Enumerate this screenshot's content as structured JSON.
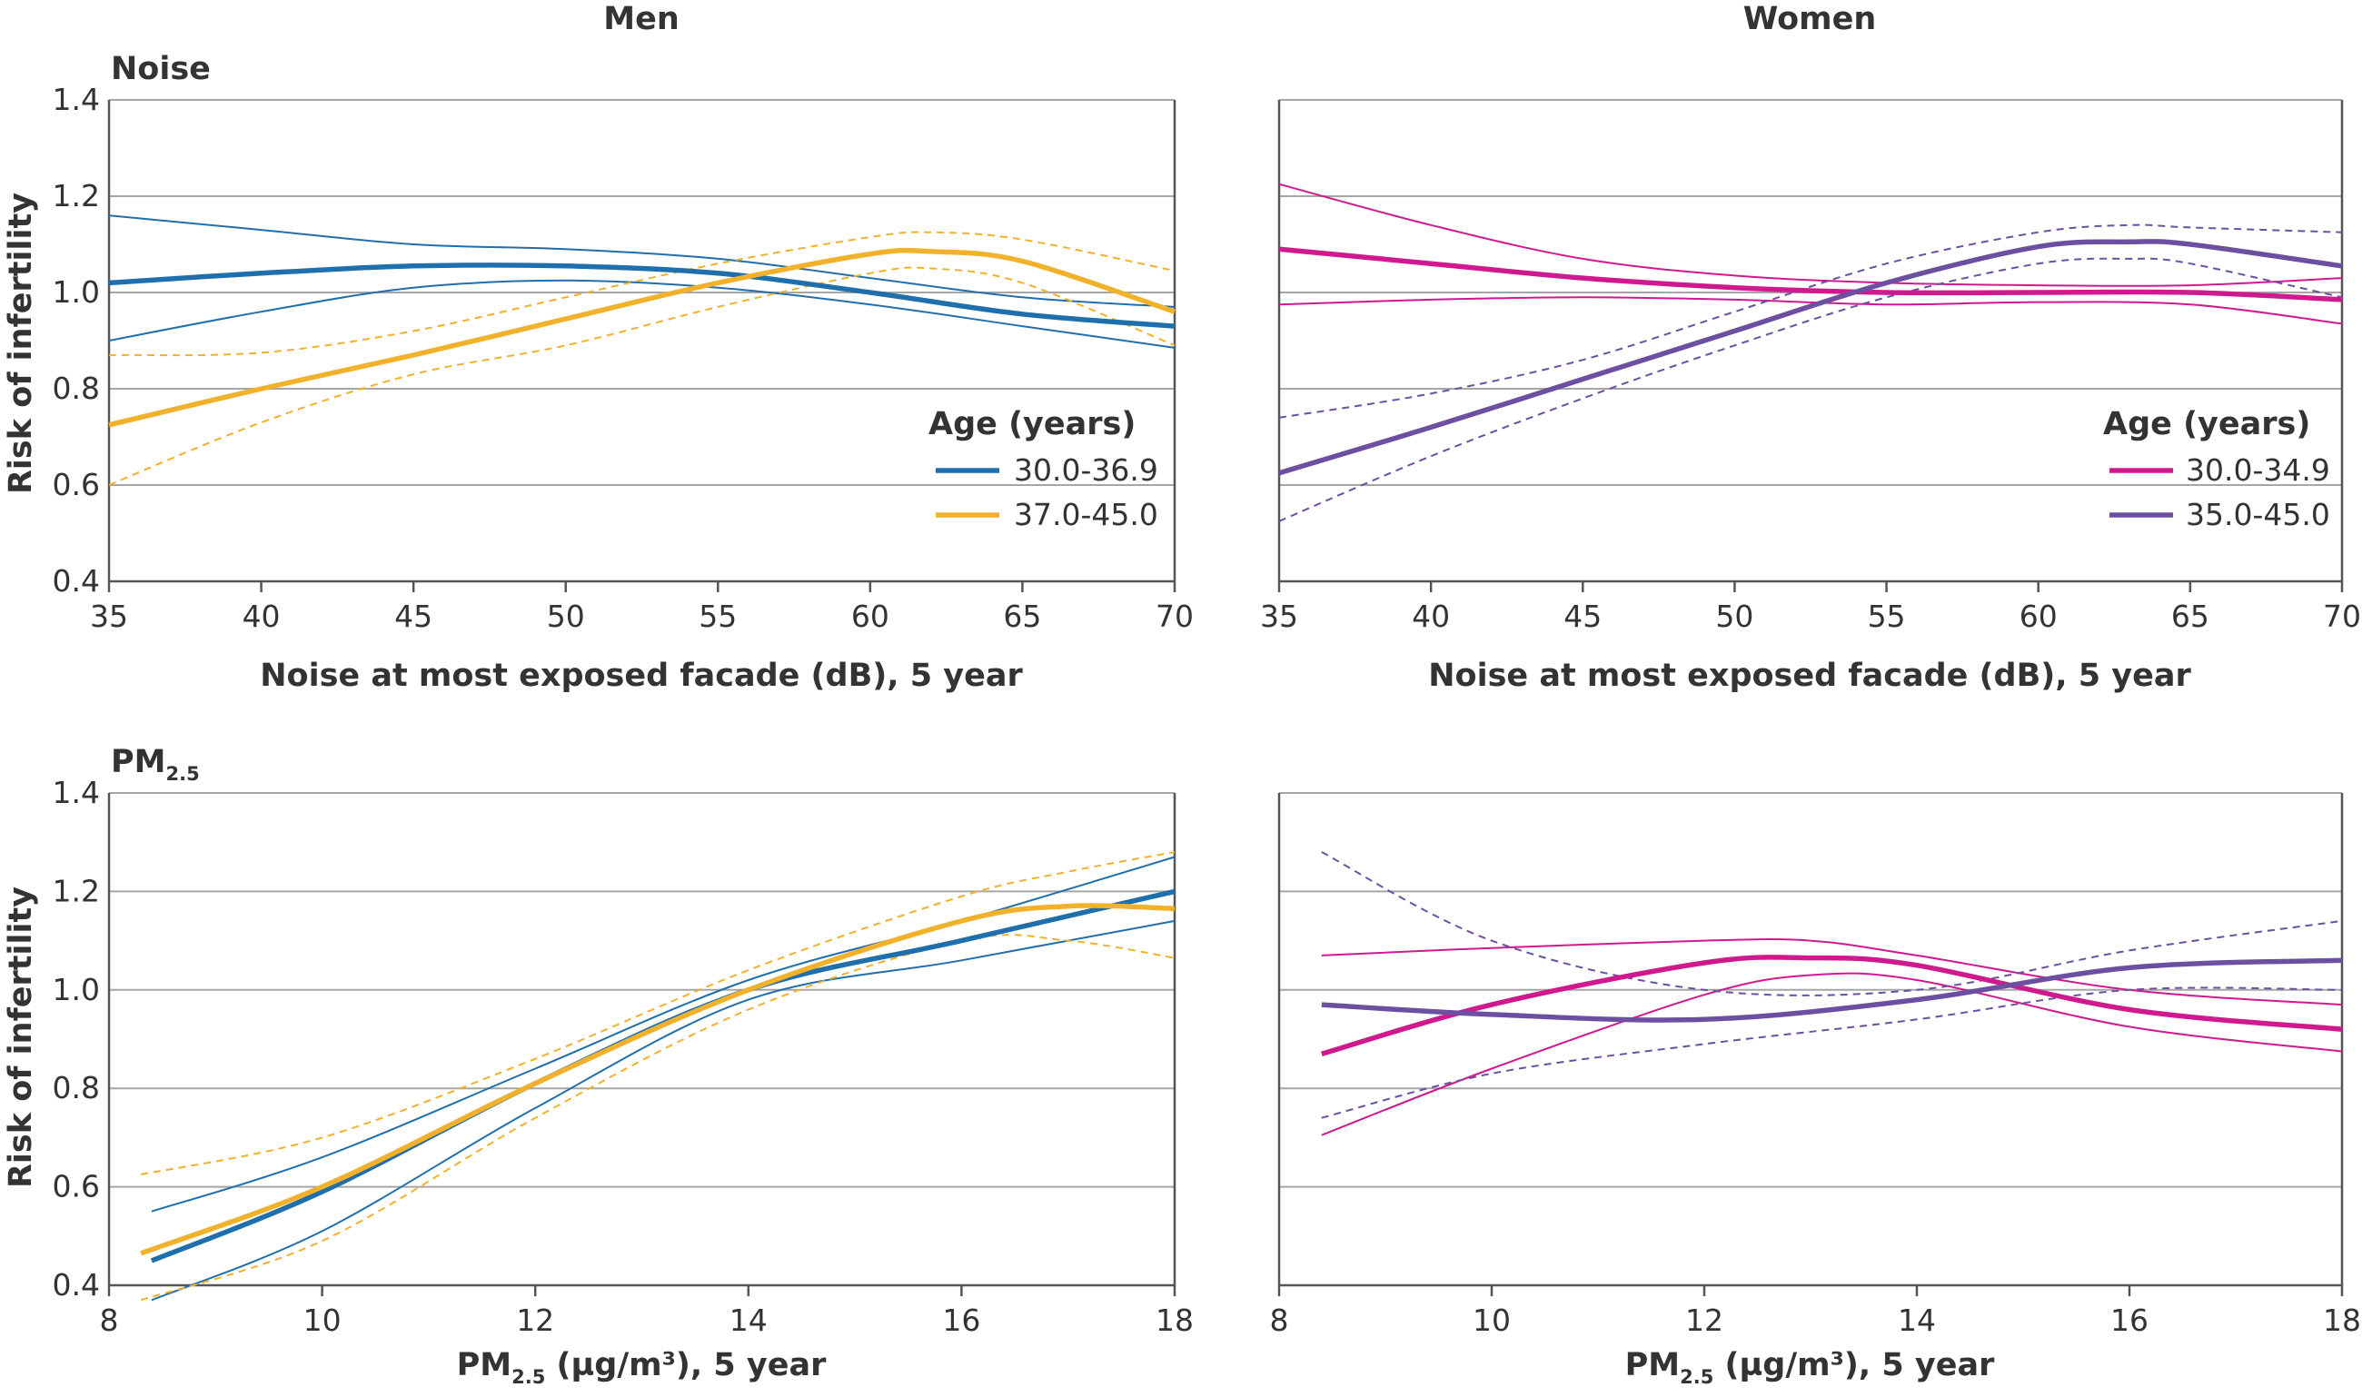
{
  "figure": {
    "column_titles": [
      "Men",
      "Women"
    ],
    "row_titles": [
      {
        "main": "Noise",
        "sub": ""
      },
      {
        "main": "PM",
        "sub": "2.5"
      }
    ],
    "y_axis_title": "Risk of infertility",
    "x_axis_titles": [
      {
        "pre": "Noise at most exposed facade (dB), 5 year",
        "sub": "",
        "post": ""
      },
      {
        "pre": "PM",
        "sub": "2.5",
        "post": " (µg/m³), 5 year"
      }
    ],
    "legends": [
      {
        "title": "Age (years)",
        "items": [
          {
            "label": "30.0-36.9",
            "color": "#1f6fad"
          },
          {
            "label": "37.0-45.0",
            "color": "#f2b12b"
          }
        ]
      },
      {
        "title": "Age (years)",
        "items": [
          {
            "label": "30.0-34.9",
            "color": "#d0198f"
          },
          {
            "label": "35.0-45.0",
            "color": "#6c4fa0"
          }
        ]
      }
    ]
  },
  "chart_data": [
    {
      "type": "line",
      "title": "Men",
      "row_label": "Noise",
      "xlabel": "Noise at most exposed facade (dB), 5 year",
      "ylabel": "Risk of infertility",
      "xlim": [
        35,
        70
      ],
      "ylim": [
        0.4,
        1.4
      ],
      "xticks": [
        35,
        40,
        45,
        50,
        55,
        60,
        65,
        70
      ],
      "yticks": [
        0.4,
        0.6,
        0.8,
        1.0,
        1.2,
        1.4
      ],
      "grid": "horizontal",
      "legend_position": "right",
      "series": [
        {
          "name": "30.0-36.9",
          "color": "#1f6fad",
          "x": [
            35,
            40,
            45,
            50,
            55,
            60,
            65,
            70
          ],
          "y": [
            1.02,
            1.04,
            1.055,
            1.055,
            1.04,
            1.0,
            0.955,
            0.93
          ],
          "lower": [
            0.9,
            0.96,
            1.01,
            1.025,
            1.01,
            0.975,
            0.93,
            0.885
          ],
          "upper": [
            1.16,
            1.13,
            1.1,
            1.09,
            1.07,
            1.03,
            0.99,
            0.97
          ]
        },
        {
          "name": "37.0-45.0",
          "color": "#f2b12b",
          "x": [
            35,
            40,
            45,
            50,
            55,
            60,
            62,
            65,
            70
          ],
          "y": [
            0.725,
            0.8,
            0.87,
            0.945,
            1.02,
            1.08,
            1.085,
            1.065,
            0.96
          ],
          "lower": [
            0.6,
            0.73,
            0.83,
            0.89,
            0.97,
            1.04,
            1.05,
            1.02,
            0.89
          ],
          "upper": [
            0.87,
            0.875,
            0.92,
            0.99,
            1.06,
            1.115,
            1.125,
            1.11,
            1.045
          ]
        }
      ]
    },
    {
      "type": "line",
      "title": "Women",
      "row_label": "Noise",
      "xlabel": "Noise at most exposed facade (dB), 5 year",
      "ylabel": "",
      "xlim": [
        35,
        70
      ],
      "ylim": [
        0.4,
        1.4
      ],
      "xticks": [
        35,
        40,
        45,
        50,
        55,
        60,
        65,
        70
      ],
      "yticks": [
        0.4,
        0.6,
        0.8,
        1.0,
        1.2,
        1.4
      ],
      "grid": "horizontal",
      "legend_position": "right",
      "series": [
        {
          "name": "30.0-34.9",
          "color": "#d0198f",
          "x": [
            35,
            40,
            45,
            50,
            55,
            60,
            65,
            70
          ],
          "y": [
            1.09,
            1.06,
            1.03,
            1.01,
            1.0,
            1.0,
            1.0,
            0.985
          ],
          "lower": [
            0.975,
            0.985,
            0.99,
            0.985,
            0.975,
            0.98,
            0.975,
            0.935
          ],
          "upper": [
            1.225,
            1.14,
            1.07,
            1.035,
            1.02,
            1.015,
            1.015,
            1.03
          ]
        },
        {
          "name": "35.0-45.0",
          "color": "#6c4fa0",
          "x": [
            35,
            40,
            45,
            50,
            55,
            60,
            63,
            65,
            70
          ],
          "y": [
            0.625,
            0.72,
            0.82,
            0.92,
            1.02,
            1.095,
            1.105,
            1.1,
            1.055
          ],
          "lower": [
            0.525,
            0.66,
            0.78,
            0.89,
            0.99,
            1.06,
            1.07,
            1.06,
            0.99
          ],
          "upper": [
            0.74,
            0.79,
            0.86,
            0.96,
            1.06,
            1.125,
            1.14,
            1.135,
            1.125
          ]
        }
      ]
    },
    {
      "type": "line",
      "title": "",
      "row_label": "PM2.5",
      "xlabel": "PM2.5 (µg/m³), 5 year",
      "ylabel": "Risk of infertility",
      "xlim": [
        8,
        18
      ],
      "ylim": [
        0.4,
        1.4
      ],
      "xticks": [
        8,
        10,
        12,
        14,
        16,
        18
      ],
      "yticks": [
        0.4,
        0.6,
        0.8,
        1.0,
        1.2,
        1.4
      ],
      "grid": "horizontal",
      "series": [
        {
          "name": "30.0-36.9",
          "color": "#1f6fad",
          "x": [
            8.4,
            10,
            12,
            14,
            16,
            18
          ],
          "y": [
            0.45,
            0.59,
            0.81,
            1.0,
            1.1,
            1.2
          ],
          "lower": [
            0.37,
            0.51,
            0.76,
            0.98,
            1.06,
            1.14
          ],
          "upper": [
            0.55,
            0.66,
            0.84,
            1.02,
            1.14,
            1.27
          ]
        },
        {
          "name": "37.0-45.0",
          "color": "#f2b12b",
          "x": [
            8.3,
            10,
            12,
            14,
            16,
            17,
            18
          ],
          "y": [
            0.465,
            0.6,
            0.81,
            1.0,
            1.14,
            1.17,
            1.165
          ],
          "lower": [
            0.37,
            0.49,
            0.74,
            0.96,
            1.1,
            1.1,
            1.065
          ],
          "upper": [
            0.625,
            0.7,
            0.86,
            1.04,
            1.19,
            1.24,
            1.28
          ]
        }
      ]
    },
    {
      "type": "line",
      "title": "",
      "row_label": "PM2.5",
      "xlabel": "PM2.5 (µg/m³), 5 year",
      "ylabel": "",
      "xlim": [
        8,
        18
      ],
      "ylim": [
        0.4,
        1.4
      ],
      "xticks": [
        8,
        10,
        12,
        14,
        16,
        18
      ],
      "yticks": [
        0.4,
        0.6,
        0.8,
        1.0,
        1.2,
        1.4
      ],
      "grid": "horizontal",
      "series": [
        {
          "name": "30.0-34.9",
          "color": "#d0198f",
          "x": [
            8.4,
            10,
            12,
            13,
            14,
            16,
            18
          ],
          "y": [
            0.87,
            0.97,
            1.055,
            1.065,
            1.05,
            0.96,
            0.92
          ],
          "lower": [
            0.705,
            0.84,
            0.99,
            1.03,
            1.02,
            0.925,
            0.875
          ],
          "upper": [
            1.07,
            1.085,
            1.1,
            1.1,
            1.07,
            1.0,
            0.97
          ]
        },
        {
          "name": "35.0-45.0",
          "color": "#6c4fa0",
          "x": [
            8.4,
            10,
            12,
            14,
            16,
            18
          ],
          "y": [
            0.97,
            0.95,
            0.94,
            0.98,
            1.045,
            1.06
          ],
          "lower": [
            0.74,
            0.83,
            0.89,
            0.94,
            1.0,
            1.0
          ],
          "upper": [
            1.28,
            1.1,
            1.0,
            1.0,
            1.08,
            1.14
          ]
        }
      ]
    }
  ]
}
